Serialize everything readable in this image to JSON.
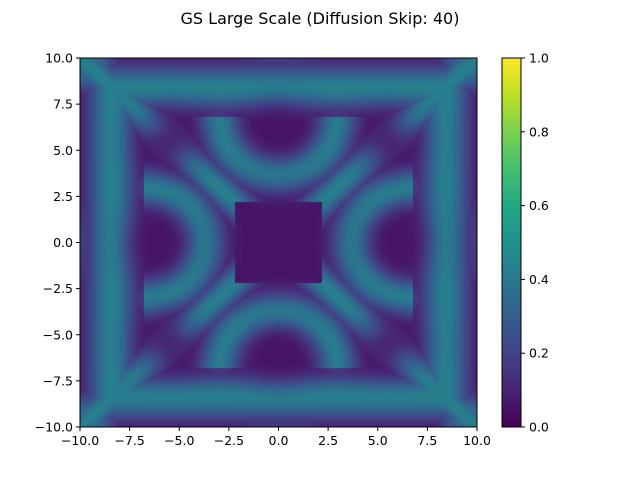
{
  "chart_data": {
    "type": "heatmap",
    "title": "GS Large Scale (Diffusion Skip: 40)",
    "xlabel": "",
    "ylabel": "",
    "xlim": [
      -10.0,
      10.0
    ],
    "ylim": [
      -10.0,
      10.0
    ],
    "x_ticks": [
      "−10.0",
      "−7.5",
      "−5.0",
      "−2.5",
      "0.0",
      "2.5",
      "5.0",
      "7.5",
      "10.0"
    ],
    "y_ticks": [
      "10.0",
      "7.5",
      "5.0",
      "2.5",
      "0.0",
      "−2.5",
      "−5.0",
      "−7.5",
      "−10.0"
    ],
    "colorbar": {
      "colormap": "viridis",
      "range": [
        0.0,
        1.0
      ],
      "ticks": [
        "1.0",
        "0.8",
        "0.6",
        "0.4",
        "0.2",
        "0.0"
      ]
    },
    "pattern": {
      "description_values": "symmetric ring pattern; rings ~0.4-0.45 on background ~0.05",
      "low": 0.05,
      "ring": 0.43
    }
  }
}
